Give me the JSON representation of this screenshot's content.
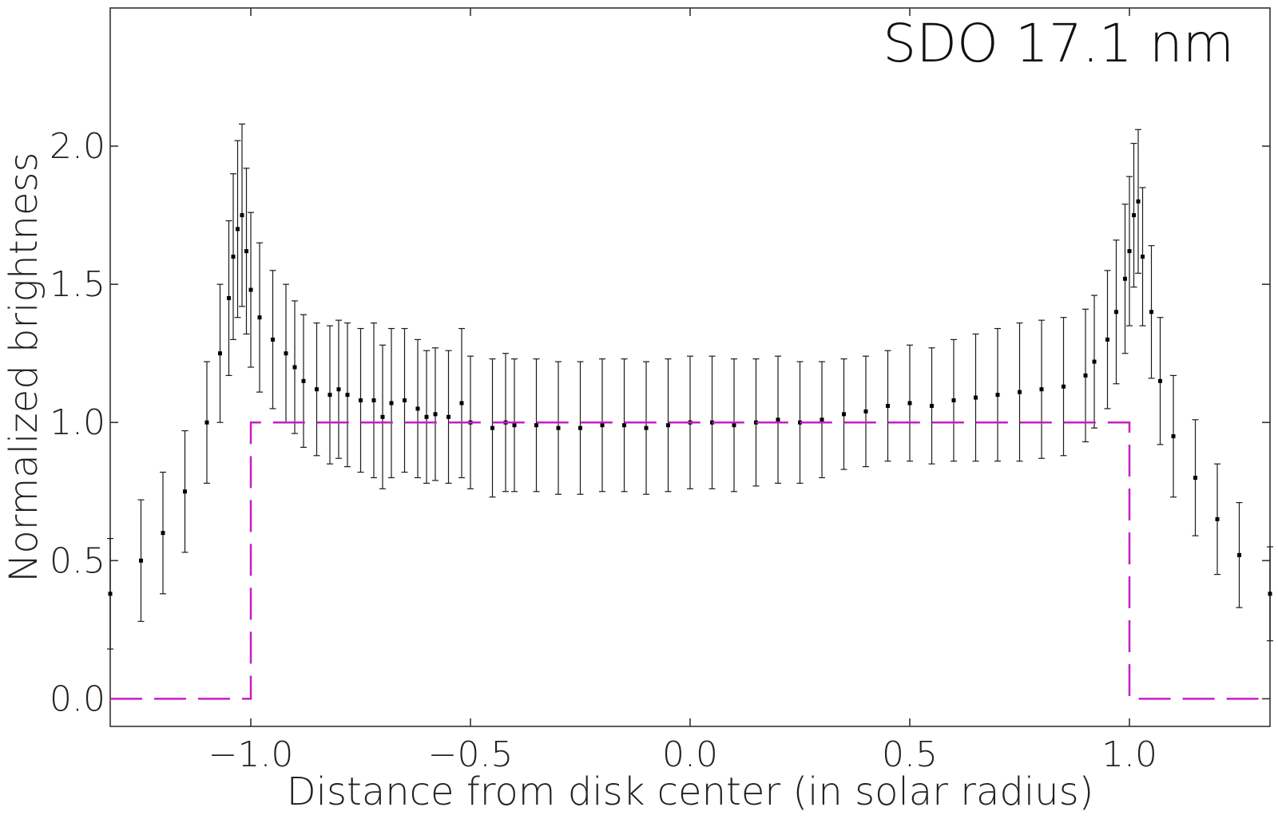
{
  "chart_data": {
    "type": "scatter",
    "title": "SDO 17.1 nm",
    "xlabel": "Distance from disk center (in solar radius)",
    "ylabel": "Normalized brightness",
    "xlim": [
      -1.32,
      1.32
    ],
    "ylim": [
      -0.1,
      2.5
    ],
    "xticks": [
      -1.0,
      -0.5,
      0.0,
      0.5,
      1.0
    ],
    "xtick_labels": [
      "−1.0",
      "−0.5",
      "0.0",
      "0.5",
      "1.0"
    ],
    "yticks": [
      0.0,
      0.5,
      1.0,
      1.5,
      2.0
    ],
    "ytick_labels": [
      "0.0",
      "0.5",
      "1.0",
      "1.5",
      "2.0"
    ],
    "grid": false,
    "colors": {
      "data": "#000000",
      "errorbar": "#1a1a1a",
      "model": "#c71ec7"
    },
    "series": [
      {
        "type": "errorbar",
        "color": "#000000",
        "x": [
          -1.32,
          -1.25,
          -1.2,
          -1.15,
          -1.1,
          -1.07,
          -1.05,
          -1.04,
          -1.03,
          -1.02,
          -1.01,
          -1.0,
          -0.98,
          -0.95,
          -0.92,
          -0.9,
          -0.88,
          -0.85,
          -0.82,
          -0.8,
          -0.78,
          -0.75,
          -0.72,
          -0.7,
          -0.68,
          -0.65,
          -0.62,
          -0.6,
          -0.58,
          -0.55,
          -0.52,
          -0.5,
          -0.45,
          -0.42,
          -0.4,
          -0.35,
          -0.3,
          -0.25,
          -0.2,
          -0.15,
          -0.1,
          -0.05,
          0.0,
          0.05,
          0.1,
          0.15,
          0.2,
          0.25,
          0.3,
          0.35,
          0.4,
          0.45,
          0.5,
          0.55,
          0.6,
          0.65,
          0.7,
          0.75,
          0.8,
          0.85,
          0.9,
          0.92,
          0.95,
          0.97,
          0.99,
          1.0,
          1.01,
          1.02,
          1.03,
          1.05,
          1.07,
          1.1,
          1.15,
          1.2,
          1.25,
          1.32
        ],
        "y": [
          0.38,
          0.5,
          0.6,
          0.75,
          1.0,
          1.25,
          1.45,
          1.6,
          1.7,
          1.75,
          1.62,
          1.48,
          1.38,
          1.3,
          1.25,
          1.2,
          1.15,
          1.12,
          1.1,
          1.12,
          1.1,
          1.08,
          1.08,
          1.02,
          1.07,
          1.08,
          1.05,
          1.02,
          1.03,
          1.02,
          1.07,
          1.0,
          0.98,
          1.0,
          0.99,
          0.99,
          0.98,
          0.98,
          0.99,
          0.99,
          0.98,
          0.99,
          1.0,
          1.0,
          0.99,
          1.0,
          1.01,
          1.0,
          1.01,
          1.03,
          1.04,
          1.06,
          1.07,
          1.06,
          1.08,
          1.09,
          1.1,
          1.11,
          1.12,
          1.13,
          1.17,
          1.22,
          1.3,
          1.4,
          1.52,
          1.62,
          1.75,
          1.8,
          1.6,
          1.4,
          1.15,
          0.95,
          0.8,
          0.65,
          0.52,
          0.38
        ],
        "err": [
          0.2,
          0.22,
          0.22,
          0.22,
          0.22,
          0.25,
          0.28,
          0.3,
          0.32,
          0.33,
          0.3,
          0.28,
          0.27,
          0.25,
          0.25,
          0.24,
          0.24,
          0.24,
          0.25,
          0.25,
          0.26,
          0.26,
          0.28,
          0.26,
          0.27,
          0.26,
          0.25,
          0.24,
          0.24,
          0.24,
          0.27,
          0.24,
          0.25,
          0.25,
          0.24,
          0.24,
          0.24,
          0.24,
          0.24,
          0.24,
          0.24,
          0.24,
          0.24,
          0.24,
          0.24,
          0.23,
          0.23,
          0.22,
          0.21,
          0.2,
          0.2,
          0.2,
          0.21,
          0.21,
          0.22,
          0.23,
          0.24,
          0.25,
          0.25,
          0.25,
          0.24,
          0.24,
          0.25,
          0.26,
          0.27,
          0.27,
          0.26,
          0.26,
          0.25,
          0.24,
          0.23,
          0.22,
          0.21,
          0.2,
          0.19,
          0.17
        ]
      },
      {
        "type": "step",
        "style": "dashed",
        "color": "#c71ec7",
        "x": [
          -1.32,
          -1.0,
          -1.0,
          1.0,
          1.0,
          1.32
        ],
        "y": [
          0.0,
          0.0,
          1.0,
          1.0,
          0.0,
          0.0
        ]
      }
    ]
  }
}
